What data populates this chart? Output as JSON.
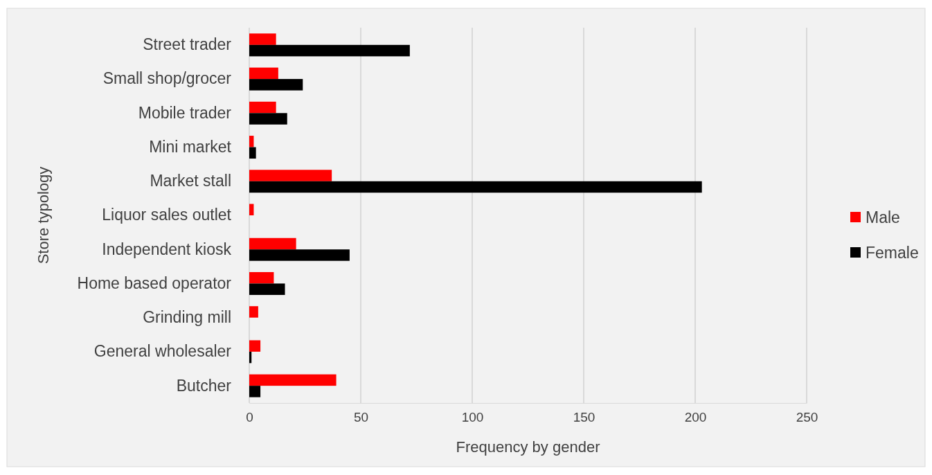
{
  "chart_data": {
    "type": "bar",
    "orientation": "horizontal",
    "xlabel": "Frequency by gender",
    "ylabel": "Store typology",
    "categories": [
      "Street trader",
      "Small shop/grocer",
      "Mobile trader",
      "Mini market",
      "Market stall",
      "Liquor sales outlet",
      "Independent kiosk",
      "Home based operator",
      "Grinding mill",
      "General wholesaler",
      "Butcher"
    ],
    "series": [
      {
        "name": "Male",
        "color": "#ff0000",
        "values": [
          12,
          13,
          12,
          2,
          37,
          2,
          21,
          11,
          4,
          5,
          39
        ]
      },
      {
        "name": "Female",
        "color": "#000000",
        "values": [
          72,
          24,
          17,
          3,
          203,
          null,
          45,
          16,
          null,
          1,
          5
        ]
      }
    ],
    "xlim": [
      0,
      250
    ],
    "xticks": [
      0,
      50,
      100,
      150,
      200,
      250
    ],
    "grid": "x",
    "legend": "right"
  }
}
